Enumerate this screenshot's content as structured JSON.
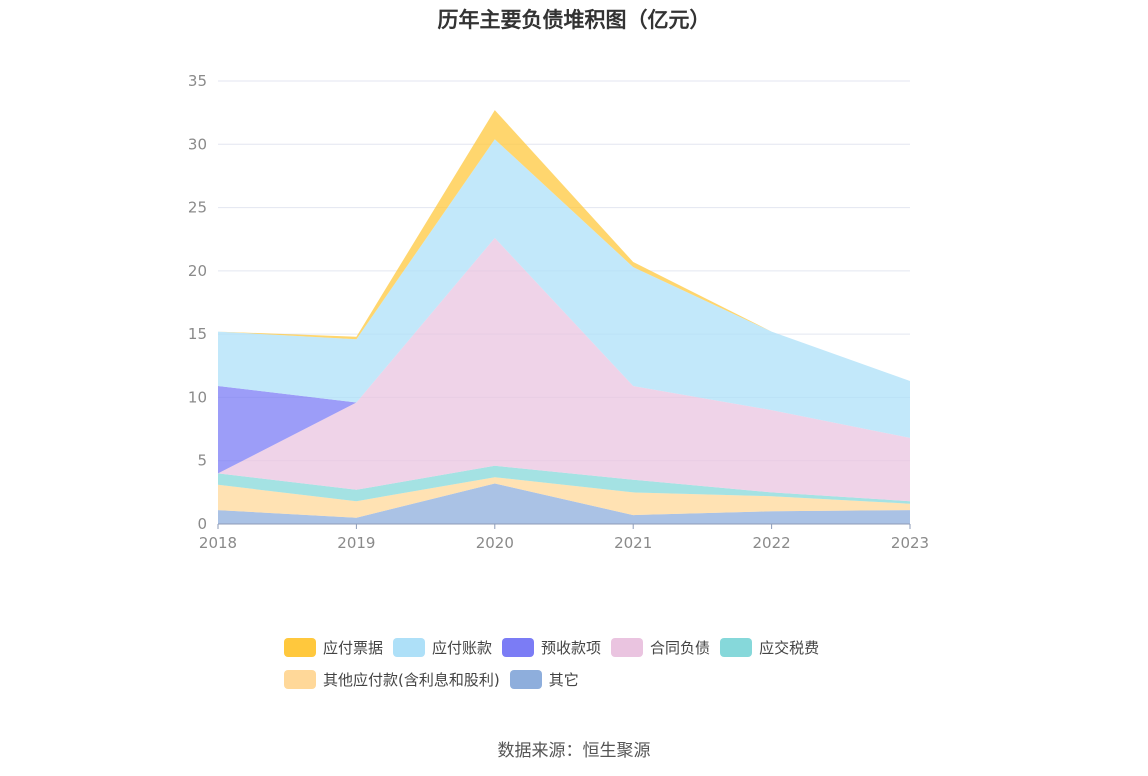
{
  "chart_data": {
    "type": "area",
    "stacked": true,
    "title": "历年主要负债堆积图（亿元）",
    "x": [
      "2018",
      "2019",
      "2020",
      "2021",
      "2022",
      "2023"
    ],
    "ylim": [
      0,
      35
    ],
    "yticks": [
      0,
      5,
      10,
      15,
      20,
      25,
      30,
      35
    ],
    "grid": true,
    "legend_position": "bottom",
    "series": [
      {
        "name": "其它",
        "color": "#8eaedc",
        "values": [
          1.1,
          0.5,
          3.2,
          0.7,
          1.0,
          1.1
        ]
      },
      {
        "name": "其他应付款(含利息和股利)",
        "color": "#ffd899",
        "values": [
          2.0,
          1.3,
          0.5,
          1.8,
          1.2,
          0.5
        ]
      },
      {
        "name": "应交税费",
        "color": "#86d8da",
        "values": [
          0.9,
          0.9,
          0.9,
          1.0,
          0.3,
          0.2
        ]
      },
      {
        "name": "合同负债",
        "color": "#eac4e0",
        "values": [
          0,
          6.9,
          18.0,
          7.4,
          6.5,
          5.0
        ]
      },
      {
        "name": "预收款项",
        "color": "#7b7cf5",
        "values": [
          6.9,
          0,
          0,
          0,
          0,
          0
        ]
      },
      {
        "name": "应付账款",
        "color": "#aee0f8",
        "values": [
          4.3,
          5.0,
          7.8,
          9.4,
          6.2,
          4.5
        ]
      },
      {
        "name": "应付票据",
        "color": "#ffc83d",
        "values": [
          0,
          0.2,
          2.3,
          0.4,
          0,
          0
        ]
      }
    ]
  },
  "legend": {
    "items": [
      {
        "label": "应付票据",
        "color": "#ffc83d"
      },
      {
        "label": "应付账款",
        "color": "#aee0f8"
      },
      {
        "label": "预收款项",
        "color": "#7b7cf5"
      },
      {
        "label": "合同负债",
        "color": "#eac4e0"
      },
      {
        "label": "应交税费",
        "color": "#86d8da"
      },
      {
        "label": "其他应付款(含利息和股利)",
        "color": "#ffd899"
      },
      {
        "label": "其它",
        "color": "#8eaedc"
      }
    ]
  },
  "source": "数据来源：恒生聚源"
}
